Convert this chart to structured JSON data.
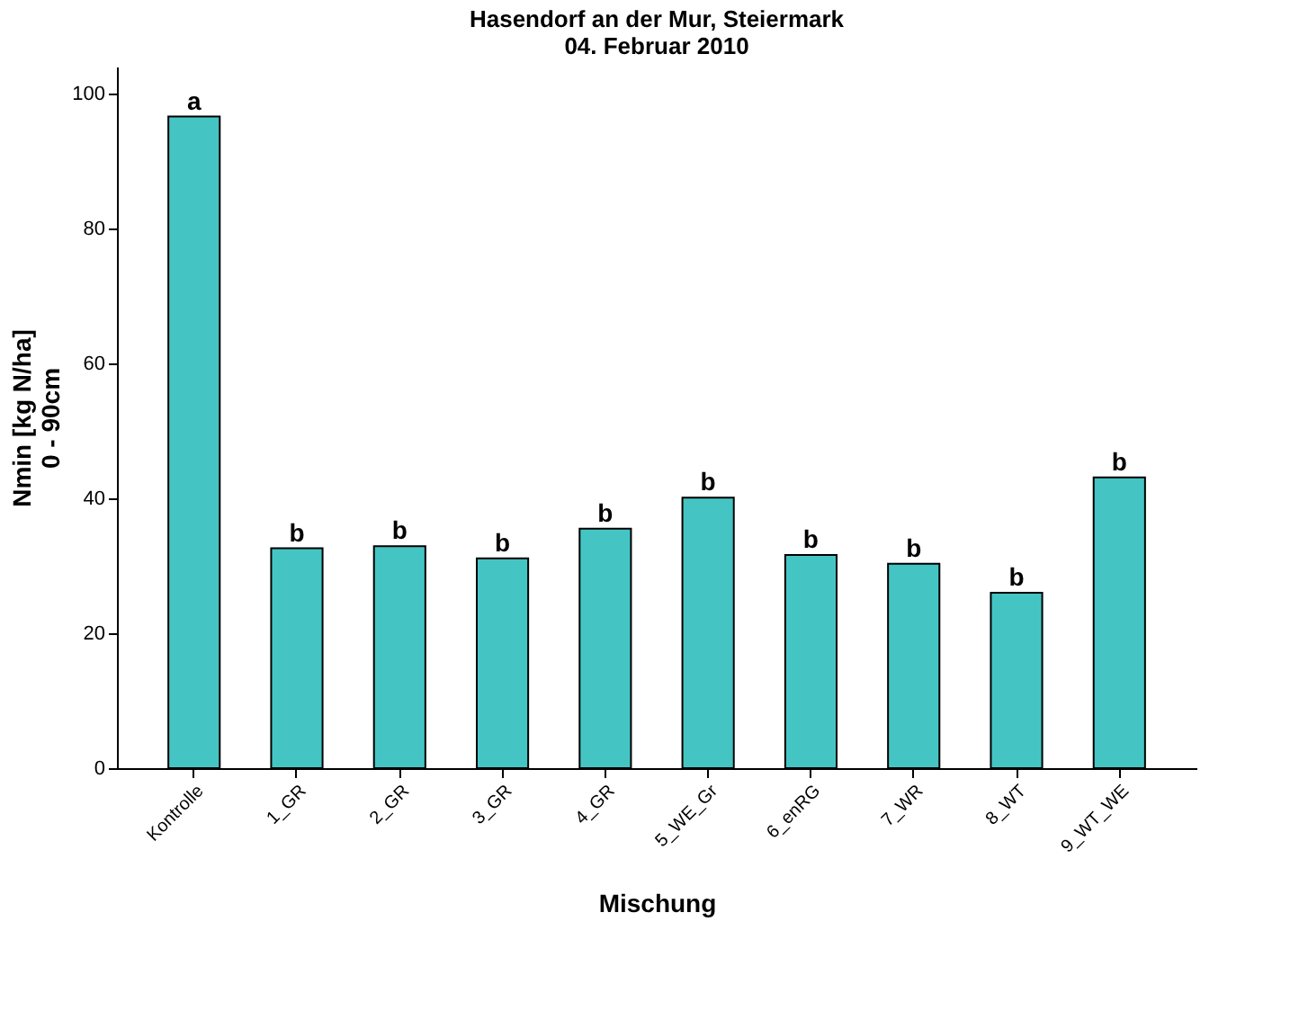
{
  "chart_data": {
    "type": "bar",
    "title": [
      "Hasendorf an der Mur, Steiermark",
      "04. Februar 2010"
    ],
    "xlabel": "Mischung",
    "ylabel": [
      "Nmin [kg N/ha]",
      "0 - 90cm"
    ],
    "categories": [
      "Kontrolle",
      "1_GR",
      "2_GR",
      "3_GR",
      "4_GR",
      "5_WE_Gr",
      "6_enRG",
      "7_WR",
      "8_WT",
      "9_WT_WE"
    ],
    "values": [
      96.6,
      32.6,
      32.9,
      31.1,
      35.5,
      40.1,
      31.6,
      30.3,
      26.0,
      43.1
    ],
    "color": "#45c4c4",
    "ylim": [
      0,
      104
    ],
    "yticks": [
      0,
      20,
      40,
      60,
      80,
      100
    ],
    "grid": false,
    "annotations": [
      {
        "text": "a",
        "x": "Kontrolle",
        "y": 96.6
      },
      {
        "text": "b",
        "x": "1_GR",
        "y": 32.6
      },
      {
        "text": "b",
        "x": "2_GR",
        "y": 32.9
      },
      {
        "text": "b",
        "x": "3_GR",
        "y": 31.1
      },
      {
        "text": "b",
        "x": "4_GR",
        "y": 35.5
      },
      {
        "text": "b",
        "x": "5_WE_Gr",
        "y": 40.1
      },
      {
        "text": "b",
        "x": "6_enRG",
        "y": 31.6
      },
      {
        "text": "b",
        "x": "7_WR",
        "y": 30.3
      },
      {
        "text": "b",
        "x": "8_WT",
        "y": 26.0
      },
      {
        "text": "b",
        "x": "9_WT_WE",
        "y": 43.1
      }
    ]
  }
}
